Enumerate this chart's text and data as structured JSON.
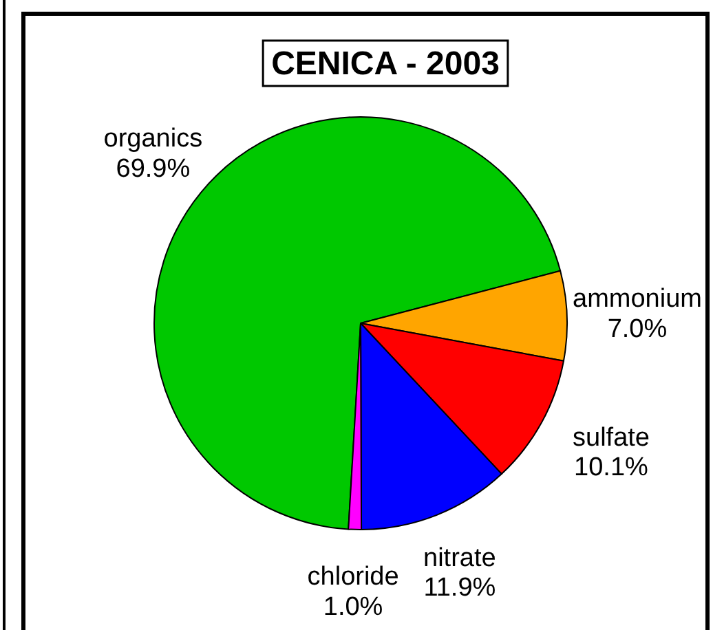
{
  "chart_data": {
    "type": "pie",
    "title": "CENICA - 2003",
    "categories": [
      "organics",
      "ammonium",
      "sulfate",
      "nitrate",
      "chloride"
    ],
    "values": [
      69.9,
      7.0,
      10.1,
      11.9,
      1.0
    ],
    "value_labels": [
      "69.9%",
      "7.0%",
      "10.1%",
      "11.9%",
      "1.0%"
    ],
    "colors": [
      "#00c800",
      "#ffa500",
      "#ff0000",
      "#0000ff",
      "#ff00ff"
    ]
  }
}
